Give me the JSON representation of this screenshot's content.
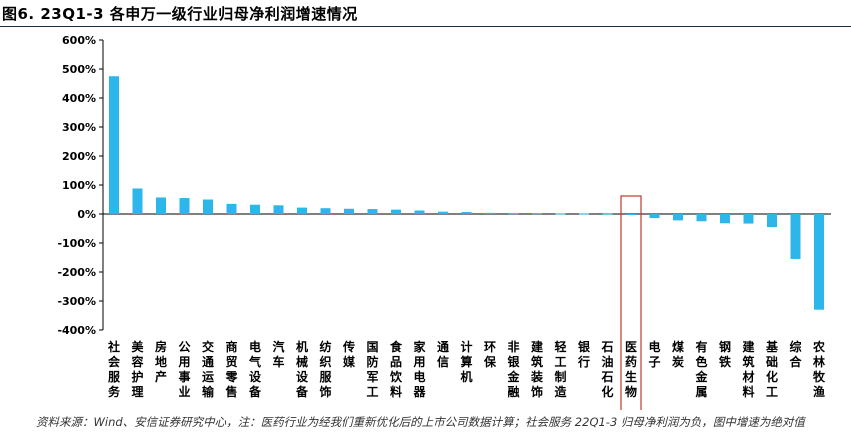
{
  "title": "图6. 23Q1-3 各申万一级行业归母净利润增速情况",
  "footer": "资料来源：Wind、安信证券研究中心，注：医药行业为经我们重新优化后的上市公司数据计算；社会服务 22Q1-3 归母净利润为负，图中增速为绝对值",
  "colors": {
    "bar": "#2cb6ea",
    "highlight": "#c0392b",
    "axis": "#000000"
  },
  "chart_data": {
    "type": "bar",
    "title": "图6. 23Q1-3 各申万一级行业归母净利润增速情况",
    "xlabel": "",
    "ylabel": "",
    "ylim": [
      -400,
      600
    ],
    "yticks": [
      "600%",
      "500%",
      "400%",
      "300%",
      "200%",
      "100%",
      "0%",
      "-100%",
      "-200%",
      "-300%",
      "-400%"
    ],
    "ytick_values": [
      600,
      500,
      400,
      300,
      200,
      100,
      0,
      -100,
      -200,
      -300,
      -400
    ],
    "unit": "%",
    "highlight": "医药生物",
    "categories": [
      "社会服务",
      "美容护理",
      "房地产",
      "公用事业",
      "交通运输",
      "商贸零售",
      "电气设备",
      "汽车",
      "机械设备",
      "纺织服饰",
      "传媒",
      "国防军工",
      "食品饮料",
      "家用电器",
      "通信",
      "计算机",
      "环保",
      "非银金融",
      "建筑装饰",
      "轻工制造",
      "银行",
      "石油石化",
      "医药生物",
      "电子",
      "煤炭",
      "有色金属",
      "钢铁",
      "建筑材料",
      "基础化工",
      "综合",
      "农林牧渔"
    ],
    "values": [
      475,
      88,
      57,
      55,
      50,
      35,
      32,
      30,
      22,
      20,
      18,
      17,
      15,
      12,
      8,
      7,
      4,
      3,
      3,
      2,
      2,
      1,
      -3,
      -14,
      -22,
      -25,
      -32,
      -33,
      -45,
      -155,
      -330
    ],
    "grid": false,
    "legend": "none"
  }
}
